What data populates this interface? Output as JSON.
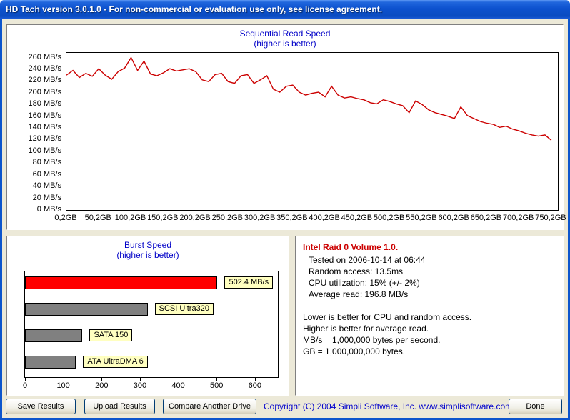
{
  "window": {
    "title": "HD Tach version 3.0.1.0  - For non-commercial or evaluation use only, see license agreement."
  },
  "chart_data": [
    {
      "type": "line",
      "title": "Sequential Read Speed",
      "subtitle": "(higher is better)",
      "line_color": "#cc0000",
      "ylim": [
        0,
        268
      ],
      "xlim": [
        0,
        760
      ],
      "y_tick_values": [
        260,
        240,
        220,
        200,
        180,
        160,
        140,
        120,
        100,
        80,
        60,
        40,
        20,
        0
      ],
      "y_tick_labels": [
        "260 MB/s",
        "240 MB/s",
        "220 MB/s",
        "200 MB/s",
        "180 MB/s",
        "160 MB/s",
        "140 MB/s",
        "120 MB/s",
        "100 MB/s",
        "80 MB/s",
        "60 MB/s",
        "40 MB/s",
        "20 MB/s",
        "0 MB/s"
      ],
      "x_tick_values": [
        0,
        50,
        100,
        150,
        200,
        250,
        300,
        350,
        400,
        450,
        500,
        550,
        600,
        650,
        700,
        750
      ],
      "x_tick_labels": [
        "0,2GB",
        "50,2GB",
        "100,2GB",
        "150,2GB",
        "200,2GB",
        "250,2GB",
        "300,2GB",
        "350,2GB",
        "400,2GB",
        "450,2GB",
        "500,2GB",
        "550,2GB",
        "600,2GB",
        "650,2GB",
        "700,2GB",
        "750,2GB"
      ],
      "x": [
        0,
        10,
        20,
        30,
        40,
        50,
        60,
        70,
        80,
        90,
        100,
        110,
        120,
        130,
        140,
        150,
        160,
        170,
        180,
        190,
        200,
        210,
        220,
        230,
        240,
        250,
        260,
        270,
        280,
        290,
        300,
        310,
        320,
        330,
        340,
        350,
        360,
        370,
        380,
        390,
        400,
        410,
        420,
        430,
        440,
        450,
        460,
        470,
        480,
        490,
        500,
        510,
        520,
        530,
        540,
        550,
        560,
        570,
        580,
        590,
        600,
        610,
        620,
        630,
        640,
        650,
        660,
        670,
        680,
        690,
        700,
        710,
        720,
        730,
        740,
        750
      ],
      "values": [
        230,
        238,
        226,
        233,
        228,
        241,
        230,
        223,
        236,
        242,
        260,
        238,
        254,
        232,
        229,
        234,
        241,
        237,
        239,
        241,
        236,
        222,
        219,
        231,
        233,
        219,
        216,
        229,
        231,
        216,
        222,
        229,
        206,
        201,
        211,
        213,
        201,
        196,
        199,
        201,
        193,
        211,
        196,
        191,
        193,
        190,
        188,
        183,
        181,
        188,
        185,
        181,
        178,
        166,
        186,
        180,
        171,
        166,
        163,
        160,
        156,
        176,
        161,
        156,
        151,
        148,
        146,
        141,
        143,
        138,
        135,
        131,
        128,
        126,
        128,
        119
      ]
    },
    {
      "type": "bar",
      "title": "Burst Speed",
      "subtitle": "(higher is better)",
      "orientation": "horizontal",
      "xlim": [
        0,
        660
      ],
      "x_ticks": [
        0,
        100,
        200,
        300,
        400,
        500,
        600
      ],
      "bars": [
        {
          "label": "502.4 MB/s",
          "value": 502.4,
          "color": "#ff0000"
        },
        {
          "label": "SCSI Ultra320",
          "value": 320,
          "color": "#808080"
        },
        {
          "label": "SATA 150",
          "value": 150,
          "color": "#808080"
        },
        {
          "label": "ATA UltraDMA 6",
          "value": 133,
          "color": "#808080"
        }
      ],
      "label_bg_color": "#ffffc0"
    }
  ],
  "info": {
    "drive_name": "Intel Raid 0 Volume 1.0.",
    "drive_name_color": "#cc0000",
    "lines": [
      "Tested on 2006-10-14 at 06:44",
      "Random access: 13.5ms",
      "CPU utilization: 15% (+/- 2%)",
      "Average read: 196.8 MB/s"
    ],
    "notes": [
      "Lower is better for CPU and random access.",
      "Higher is better for average read.",
      "MB/s = 1,000,000 bytes per second.",
      "GB = 1,000,000,000 bytes."
    ]
  },
  "buttons": {
    "save": "Save Results",
    "upload": "Upload Results",
    "compare": "Compare Another Drive",
    "done": "Done"
  },
  "footer": {
    "copyright": "Copyright (C) 2004 Simpli Software, Inc. www.simplisoftware.com",
    "copyright_color": "#0000cc"
  },
  "colors": {
    "titlebar_blue": "#0d52cf",
    "client_background": "#ece9d8",
    "chart_title_blue": "#0000c8",
    "line_red": "#cc0000",
    "bar_gray": "#808080",
    "bar_red": "#ff0000",
    "tooltip_yellow": "#ffffc0"
  }
}
